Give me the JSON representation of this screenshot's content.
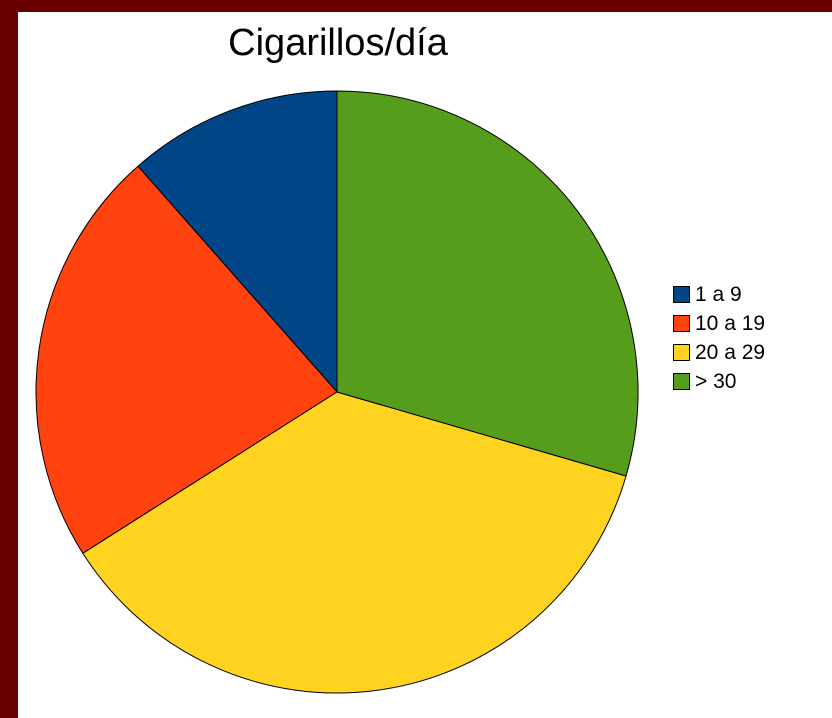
{
  "chart_data": {
    "type": "pie",
    "title": "Cigarillos/día",
    "categories": [
      "1 a 9",
      "10 a 19",
      "20 a 29",
      "> 30"
    ],
    "values": [
      11.5,
      22.5,
      36.5,
      29.5
    ],
    "colors": [
      "#004586",
      "#ff420e",
      "#ffd320",
      "#579d1c"
    ],
    "legend_position": "right"
  }
}
